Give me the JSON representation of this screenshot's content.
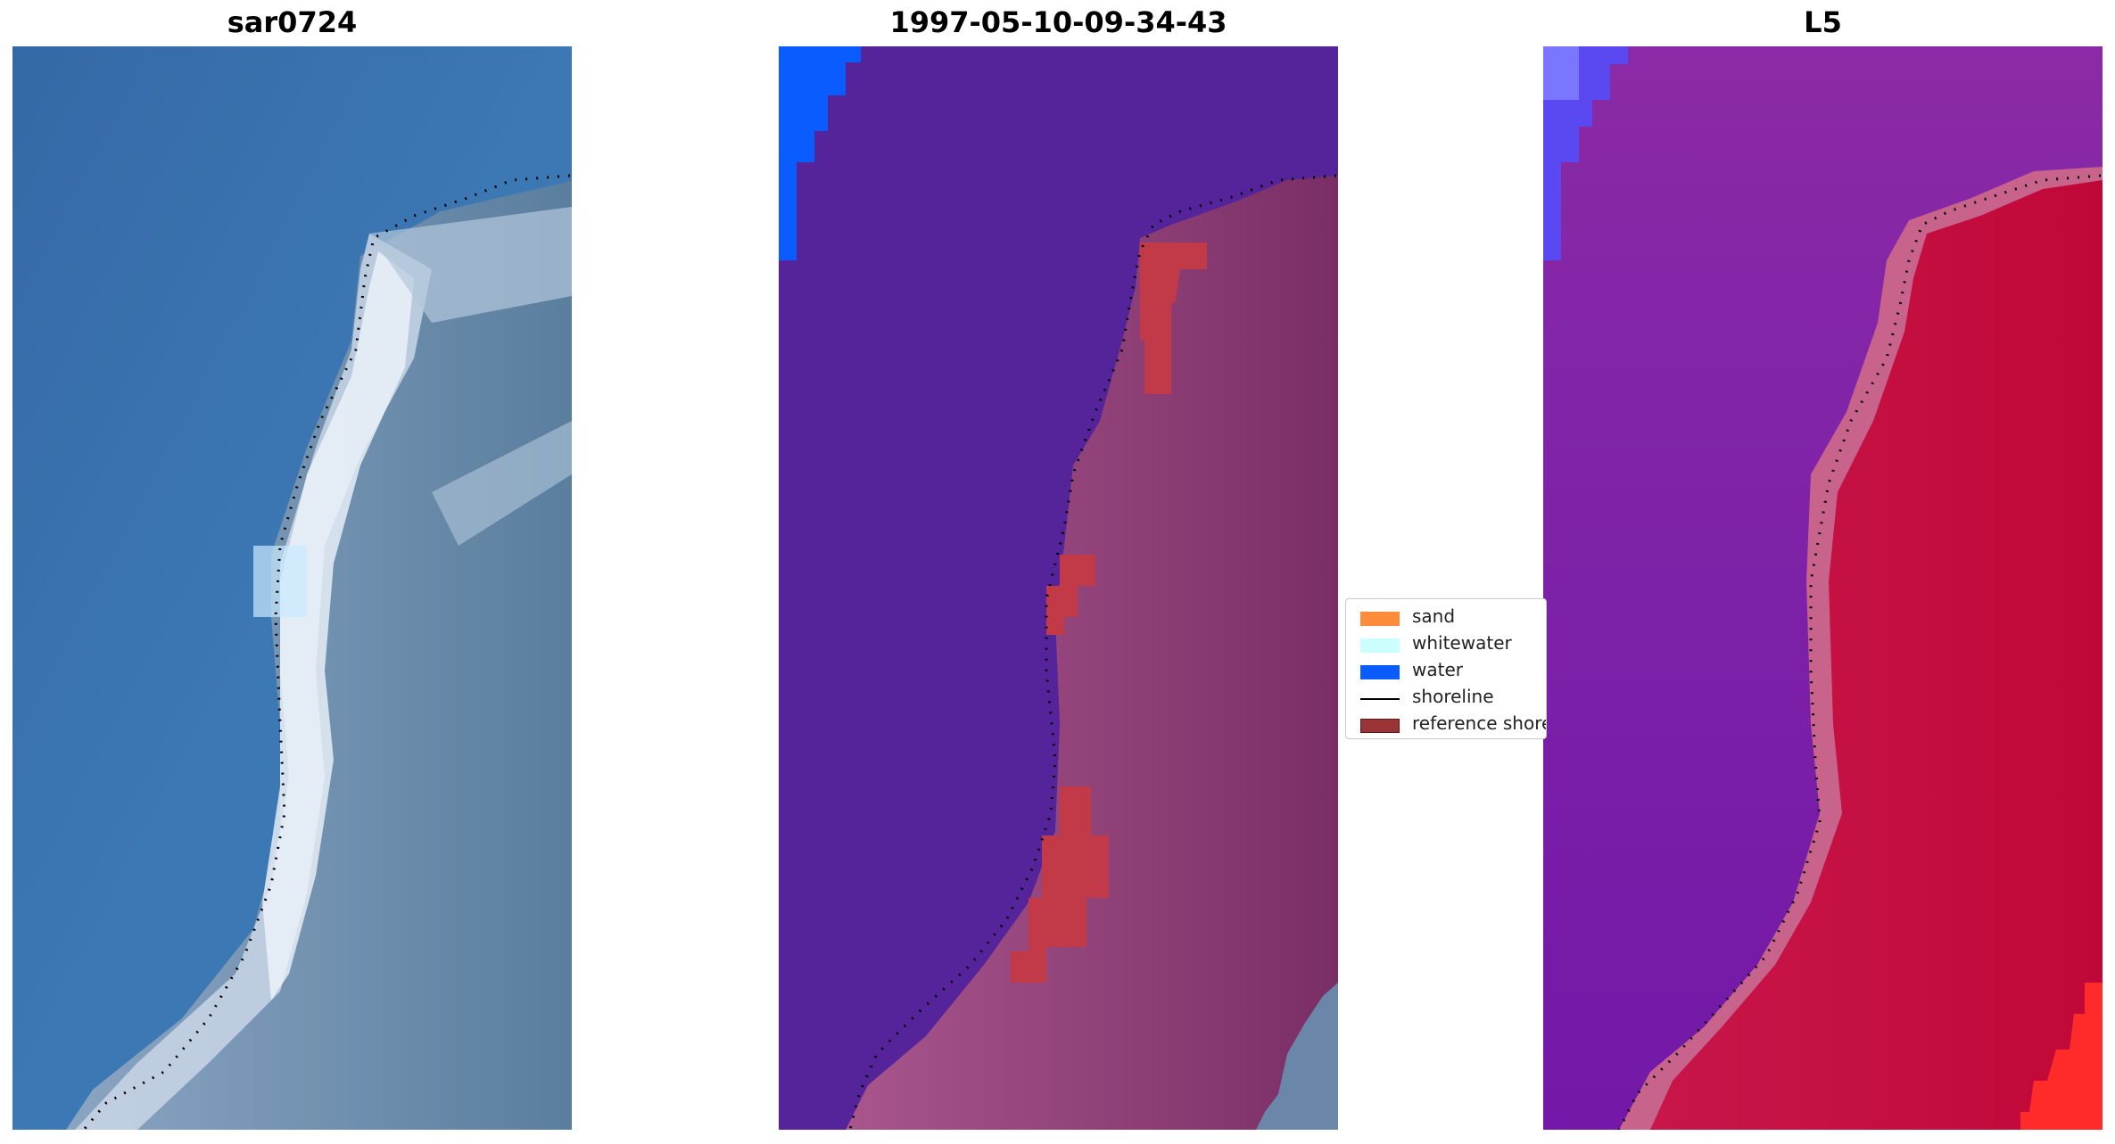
{
  "panels": [
    {
      "title": "sar0724"
    },
    {
      "title": "1997-05-10-09-34-43"
    },
    {
      "title": "L5"
    }
  ],
  "legend": {
    "items": [
      {
        "label": "sand",
        "color": "#ff8c3a",
        "kind": "patch"
      },
      {
        "label": "whitewater",
        "color": "#ccffff",
        "kind": "patch"
      },
      {
        "label": "water",
        "color": "#0a5cff",
        "kind": "patch"
      },
      {
        "label": "shoreline",
        "color": "#000000",
        "kind": "line"
      },
      {
        "label": "reference shoreline",
        "color": "#9b3436",
        "kind": "patch"
      }
    ]
  },
  "colors": {
    "sea_blue": "#3a74b0",
    "classified_water_purple": "#55239a",
    "land_pink": "#9a4a80",
    "reference_buffer_red": "#c23a48",
    "l5_land_red": "#c0093a",
    "l5_water_purple": "#7a1fa8"
  }
}
